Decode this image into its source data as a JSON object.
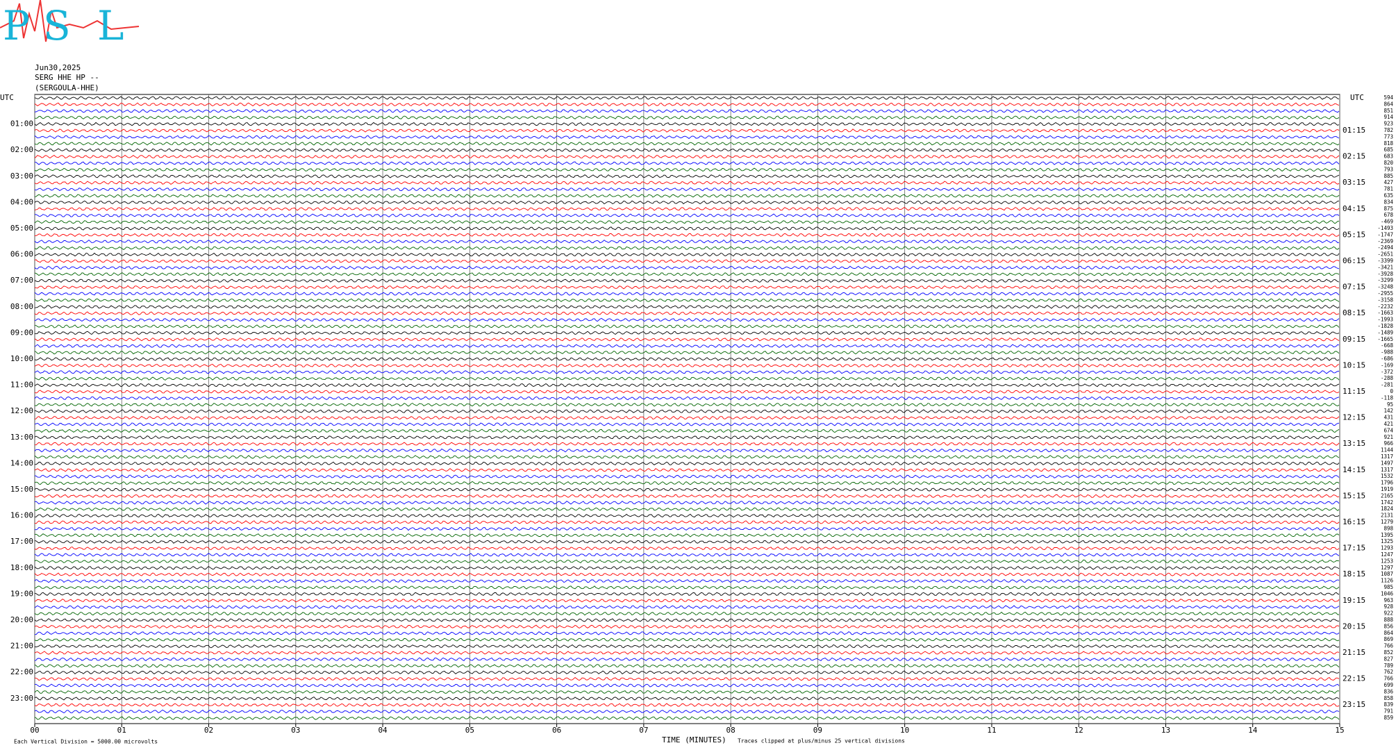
{
  "header": {
    "logo_letters": [
      "P",
      "S",
      "L"
    ],
    "date": "Jun30,2025",
    "station": "SERG HHE HP --",
    "station_name": "(SERGOULA-HHE)"
  },
  "chart_data": {
    "type": "helicorder",
    "left_axis_label": "UTC",
    "right_axis_label": "UTC",
    "left_labels": [
      "01:00",
      "02:00",
      "03:00",
      "04:00",
      "05:00",
      "06:00",
      "07:00",
      "08:00",
      "09:00",
      "10:00",
      "11:00",
      "12:00",
      "13:00",
      "14:00",
      "15:00",
      "16:00",
      "17:00",
      "18:00",
      "19:00",
      "20:00",
      "21:00",
      "22:00",
      "23:00"
    ],
    "right_labels": [
      "01:15",
      "02:15",
      "03:15",
      "04:15",
      "05:15",
      "06:15",
      "07:15",
      "08:15",
      "09:15",
      "10:15",
      "11:15",
      "12:15",
      "13:15",
      "14:15",
      "15:15",
      "16:15",
      "17:15",
      "18:15",
      "19:15",
      "20:15",
      "21:15",
      "22:15",
      "23:15"
    ],
    "row_offsets": [
      594,
      864,
      851,
      914,
      923,
      782,
      773,
      818,
      685,
      683,
      820,
      793,
      885,
      427,
      781,
      635,
      834,
      875,
      678,
      -469,
      -1493,
      -1747,
      -2369,
      -2494,
      -2651,
      -3399,
      -3421,
      -3928,
      -3299,
      -3248,
      -2955,
      -3158,
      -2232,
      -1663,
      -1993,
      -1828,
      -1489,
      -1665,
      -668,
      -988,
      -686,
      -169,
      -372,
      -288,
      -281,
      0,
      -118,
      95,
      142,
      431,
      421,
      674,
      921,
      966,
      1144,
      1317,
      1497,
      1317,
      1532,
      1796,
      1919,
      2165,
      1742,
      1824,
      2131,
      1279,
      898,
      1395,
      1325,
      1293,
      1247,
      1253,
      1297,
      1087,
      1126,
      985,
      1046,
      963,
      928,
      922,
      888,
      856,
      864,
      869,
      766,
      852,
      827,
      789,
      762,
      766,
      699,
      836,
      858,
      839,
      791,
      859
    ],
    "trace_colors": [
      "#000000",
      "#ff0000",
      "#0000ff",
      "#006400"
    ],
    "x_label": "TIME (MINUTES)",
    "xlim": [
      0,
      15
    ],
    "xticks": [
      {
        "value": 0,
        "label": "00"
      },
      {
        "value": 1,
        "label": "01"
      },
      {
        "value": 2,
        "label": "02"
      },
      {
        "value": 3,
        "label": "03"
      },
      {
        "value": 4,
        "label": "04"
      },
      {
        "value": 5,
        "label": "05"
      },
      {
        "value": 6,
        "label": "06"
      },
      {
        "value": 7,
        "label": "07"
      },
      {
        "value": 8,
        "label": "08"
      },
      {
        "value": 9,
        "label": "09"
      },
      10,
      11,
      12,
      13,
      14,
      15
    ],
    "grid": true,
    "scale_note": "Each Vertical Division = 5000.00 microvolts",
    "clip_note": "Traces clipped at plus/minus 25 vertical divisions"
  }
}
